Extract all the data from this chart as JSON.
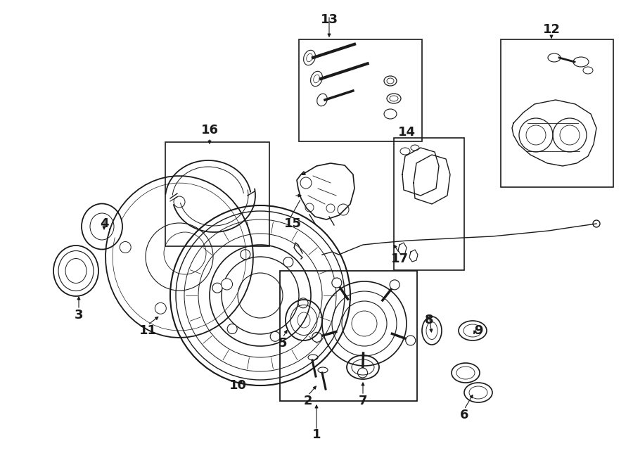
{
  "bg_color": "#ffffff",
  "lc": "#1a1a1a",
  "fig_w": 9.0,
  "fig_h": 6.61,
  "dpi": 100,
  "labels": [
    [
      "1",
      450,
      618
    ],
    [
      "2",
      438,
      570
    ],
    [
      "3",
      112,
      448
    ],
    [
      "4",
      148,
      318
    ],
    [
      "5",
      402,
      488
    ],
    [
      "6",
      660,
      590
    ],
    [
      "7",
      516,
      570
    ],
    [
      "8",
      610,
      455
    ],
    [
      "9",
      680,
      470
    ],
    [
      "10",
      338,
      548
    ],
    [
      "11",
      210,
      470
    ],
    [
      "12",
      784,
      42
    ],
    [
      "13",
      468,
      28
    ],
    [
      "14",
      578,
      188
    ],
    [
      "15",
      416,
      318
    ],
    [
      "16",
      298,
      185
    ],
    [
      "17",
      568,
      368
    ]
  ]
}
